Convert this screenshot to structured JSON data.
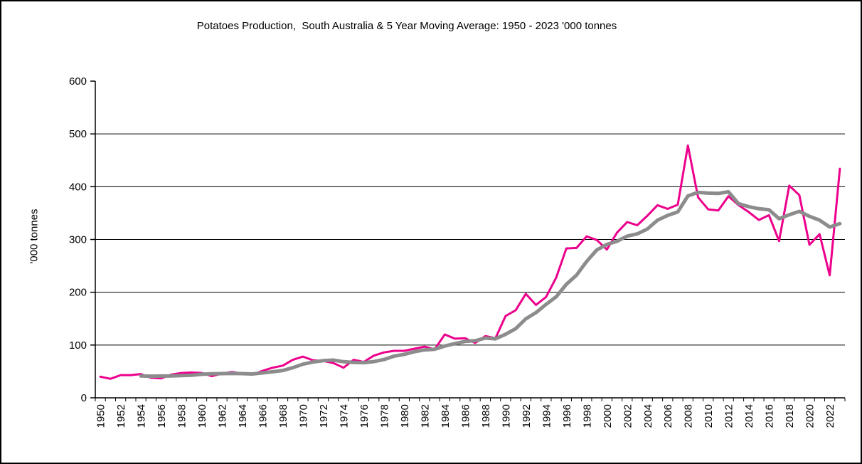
{
  "window": {
    "background_color": "#ffffff",
    "border_color": "#000000"
  },
  "chart_data": {
    "type": "line",
    "title": "Potatoes Production,  South Australia & 5 Year Moving Average: 1950 - 2023 '000 tonnes",
    "xlabel": "",
    "ylabel": "'000 tonnes",
    "ylim": [
      0,
      600
    ],
    "y_ticks": [
      0,
      100,
      200,
      300,
      400,
      500,
      600
    ],
    "y_gridlines": [
      100,
      200,
      300,
      400,
      500
    ],
    "x_tick_label_step": 2,
    "grid": "horizontal",
    "legend": "none",
    "axis_color": "#000000",
    "x": [
      1950,
      1951,
      1952,
      1953,
      1954,
      1955,
      1956,
      1957,
      1958,
      1959,
      1960,
      1961,
      1962,
      1963,
      1964,
      1965,
      1966,
      1967,
      1968,
      1969,
      1970,
      1971,
      1972,
      1973,
      1974,
      1975,
      1976,
      1977,
      1978,
      1979,
      1980,
      1981,
      1982,
      1983,
      1984,
      1985,
      1986,
      1987,
      1988,
      1989,
      1990,
      1991,
      1992,
      1993,
      1994,
      1995,
      1996,
      1997,
      1998,
      1999,
      2000,
      2001,
      2002,
      2003,
      2004,
      2005,
      2006,
      2007,
      2008,
      2009,
      2010,
      2011,
      2012,
      2013,
      2014,
      2015,
      2016,
      2017,
      2018,
      2019,
      2020,
      2021,
      2022,
      2023
    ],
    "series": [
      {
        "id": "annual-production-line",
        "name": "Potatoes Production South Australia ('000 tonnes)",
        "color": "#EC008C",
        "stroke_width": 3,
        "values": [
          40,
          36,
          43,
          43,
          45,
          38,
          37,
          44,
          47,
          48,
          47,
          41,
          46,
          49,
          46,
          44,
          51,
          57,
          61,
          72,
          78,
          71,
          70,
          66,
          57,
          72,
          68,
          80,
          86,
          89,
          89,
          93,
          97,
          92,
          120,
          112,
          113,
          104,
          117,
          113,
          155,
          166,
          197,
          176,
          191,
          228,
          283,
          284,
          306,
          299,
          281,
          313,
          333,
          327,
          345,
          365,
          358,
          366,
          478,
          380,
          357,
          355,
          382,
          365,
          352,
          337,
          346,
          297,
          402,
          384,
          290,
          310,
          232,
          434
        ]
      },
      {
        "id": "moving-average-line",
        "name": "5 Year Moving Average",
        "color": "#8C8C8C",
        "stroke_width": 5,
        "values": [
          null,
          null,
          null,
          null,
          41.4,
          41,
          41.2,
          41.4,
          42.2,
          42.8,
          44.6,
          45.4,
          45.8,
          46.2,
          45.8,
          45.2,
          47.2,
          49.4,
          51.8,
          57,
          63.8,
          67.8,
          70.4,
          71.4,
          68.4,
          67.2,
          66.6,
          68.6,
          72.6,
          79,
          82.4,
          87.4,
          90.8,
          92,
          98.2,
          102.8,
          106.8,
          108.2,
          113.2,
          111.8,
          120.4,
          131,
          149.6,
          161.4,
          177,
          191.6,
          215,
          232.4,
          258.4,
          280,
          290.6,
          296.6,
          306.4,
          310.6,
          319.8,
          336.6,
          345.6,
          352.2,
          382.4,
          389.4,
          387.8,
          387.2,
          390.4,
          367.8,
          362.2,
          358.2,
          356.4,
          339.4,
          346.8,
          353.2,
          343.8,
          336.6,
          323.6,
          330
        ]
      }
    ]
  }
}
